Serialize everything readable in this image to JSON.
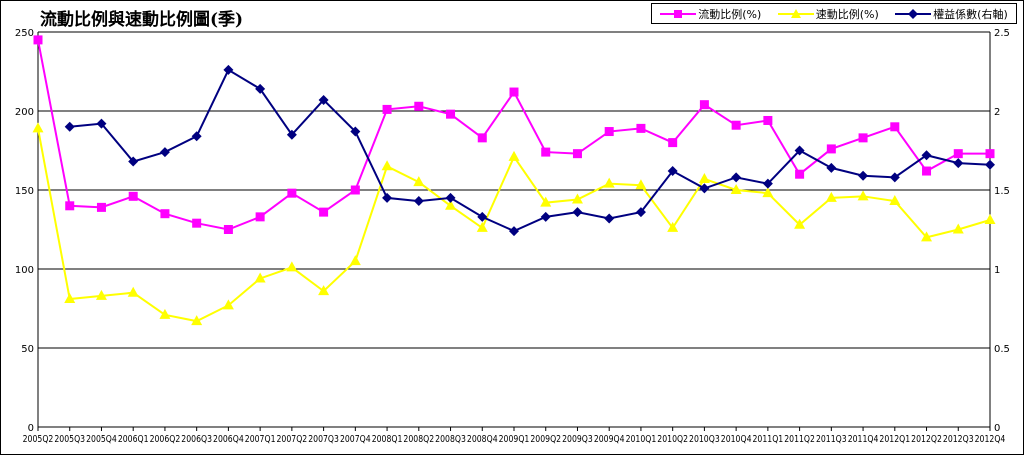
{
  "chart_data": {
    "type": "line",
    "title": "流動比例與速動比例圖(季)",
    "categories": [
      "2005Q2",
      "2005Q3",
      "2005Q4",
      "2006Q1",
      "2006Q2",
      "2006Q3",
      "2006Q4",
      "2007Q1",
      "2007Q2",
      "2007Q3",
      "2007Q4",
      "2008Q1",
      "2008Q2",
      "2008Q3",
      "2008Q4",
      "2009Q1",
      "2009Q2",
      "2009Q3",
      "2009Q4",
      "2010Q1",
      "2010Q2",
      "2010Q3",
      "2010Q4",
      "2011Q1",
      "2011Q2",
      "2011Q3",
      "2011Q4",
      "2012Q1",
      "2012Q2",
      "2012Q3",
      "2012Q4"
    ],
    "y_left_lim": [
      0,
      250
    ],
    "y_left_ticks": [
      "0",
      "50",
      "100",
      "150",
      "200",
      "250"
    ],
    "y_right_lim": [
      0,
      2.5
    ],
    "y_right_ticks": [
      "0",
      "0.5",
      "1",
      "1.5",
      "2",
      "2.5"
    ],
    "grid": true,
    "legend_position": "top-right",
    "series": [
      {
        "name": "流動比例(%)",
        "axis": "left",
        "color": "#ff00ff",
        "marker": "square",
        "values": [
          245,
          140,
          139,
          146,
          135,
          129,
          125,
          133,
          148,
          136,
          150,
          201,
          203,
          198,
          183,
          212,
          174,
          173,
          187,
          189,
          180,
          204,
          191,
          194,
          160,
          176,
          183,
          190,
          162,
          173,
          173
        ]
      },
      {
        "name": "速動比例(%)",
        "axis": "left",
        "color": "#ffff00",
        "marker": "triangle",
        "values": [
          189,
          81,
          83,
          85,
          71,
          67,
          77,
          94,
          101,
          86,
          105,
          165,
          155,
          140,
          126,
          171,
          142,
          144,
          154,
          153,
          126,
          157,
          150,
          148,
          128,
          145,
          146,
          143,
          120,
          125,
          131
        ]
      },
      {
        "name": "權益係數(右軸)",
        "axis": "right",
        "color": "#000080",
        "marker": "diamond",
        "values": [
          null,
          1.9,
          1.92,
          1.68,
          1.74,
          1.84,
          2.26,
          2.14,
          1.85,
          2.07,
          1.87,
          1.45,
          1.43,
          1.45,
          1.33,
          1.24,
          1.33,
          1.36,
          1.32,
          1.36,
          1.62,
          1.51,
          1.58,
          1.54,
          1.75,
          1.64,
          1.59,
          1.58,
          1.72,
          1.67,
          1.66
        ]
      }
    ]
  }
}
